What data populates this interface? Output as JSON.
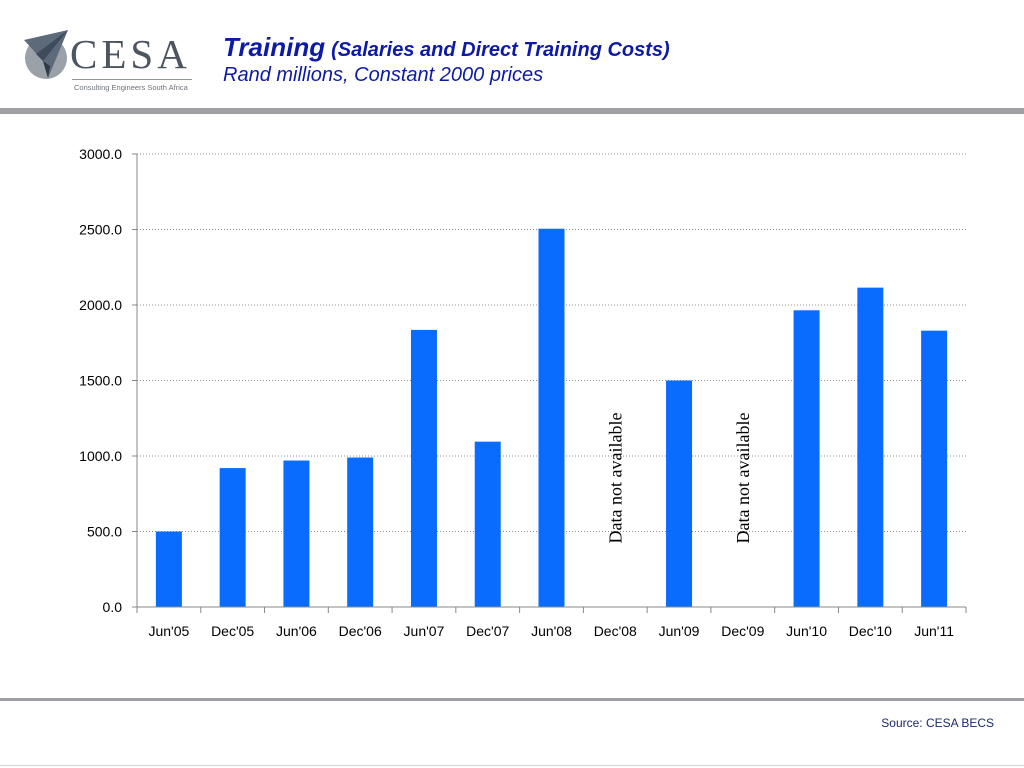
{
  "header": {
    "logo_word": "CESA",
    "logo_tagline": "Consulting Engineers South Africa",
    "title": "Training",
    "title_paren": "(Salaries and Direct Training Costs)",
    "subtitle": "Rand millions, Constant 2000 prices"
  },
  "footer": {
    "source": "Source: CESA BECS"
  },
  "colors": {
    "bar": "#0a6cff",
    "title": "#0d1aa6",
    "band": "#9ea0a3"
  },
  "chart_data": {
    "type": "bar",
    "categories": [
      "Jun'05",
      "Dec'05",
      "Jun'06",
      "Dec'06",
      "Jun'07",
      "Dec'07",
      "Jun'08",
      "Dec'08",
      "Jun'09",
      "Dec'09",
      "Jun'10",
      "Dec'10",
      "Jun'11"
    ],
    "values": [
      500,
      920,
      970,
      990,
      1835,
      1095,
      2505,
      null,
      1500,
      null,
      1965,
      2115,
      1830
    ],
    "annotations": [
      {
        "category": "Dec'08",
        "text": "Data not available"
      },
      {
        "category": "Dec'09",
        "text": "Data not available"
      }
    ],
    "yticks": [
      "0.0",
      "500.0",
      "1000.0",
      "1500.0",
      "2000.0",
      "2500.0",
      "3000.0"
    ],
    "ylim": [
      0,
      3000
    ],
    "grid": true,
    "legend": "none"
  }
}
